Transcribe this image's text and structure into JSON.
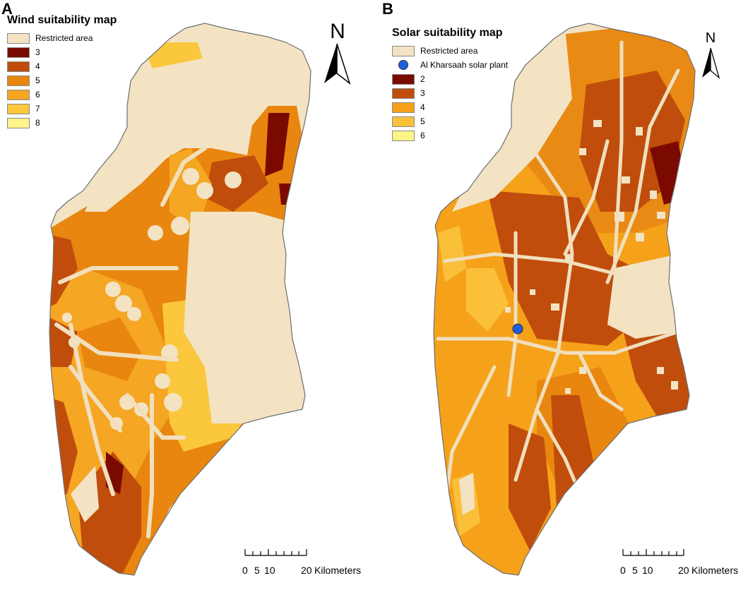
{
  "panel_a": {
    "letter": "A",
    "legend_title": "Wind suitability map",
    "legend": [
      {
        "label": "Restricted area",
        "color": "#f3e3c3"
      },
      {
        "label": "3",
        "color": "#7a0a00"
      },
      {
        "label": "4",
        "color": "#c04d0b"
      },
      {
        "label": "5",
        "color": "#e8860f"
      },
      {
        "label": "6",
        "color": "#f5a623"
      },
      {
        "label": "7",
        "color": "#fbc73d"
      },
      {
        "label": "8",
        "color": "#fef48a"
      }
    ],
    "north_label": "N",
    "scale_ticks": [
      "0",
      "5",
      "10",
      "20"
    ],
    "scale_unit": "Kilometers"
  },
  "panel_b": {
    "letter": "B",
    "legend_title": "Solar suitability map",
    "legend": [
      {
        "label": "Restricted area",
        "color": "#f3e3c3"
      },
      {
        "label": "Al Kharsaah solar plant",
        "color": "#1f5fe0",
        "marker": "dot"
      },
      {
        "label": "2",
        "color": "#7a0a00"
      },
      {
        "label": "3",
        "color": "#c04d0b"
      },
      {
        "label": "4",
        "color": "#f5a21a"
      },
      {
        "label": "5",
        "color": "#fbc03a"
      },
      {
        "label": "6",
        "color": "#fef48a"
      }
    ],
    "north_label": "N",
    "scale_ticks": [
      "0",
      "5",
      "10",
      "20"
    ],
    "scale_unit": "Kilometers"
  },
  "colors": {
    "restricted": "#f3e3c3",
    "outline": "#6e6e6e",
    "road": "#f1dfbd"
  }
}
